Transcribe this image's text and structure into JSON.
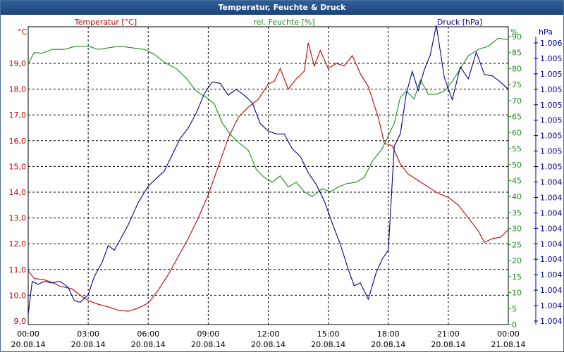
{
  "window": {
    "title": "Temperatur, Feuchte & Druck"
  },
  "colors": {
    "temperature": "#c00000",
    "humidity": "#1a8c1a",
    "pressure": "#00008b",
    "grid": "#000000",
    "text": "#000000",
    "titlebar": "#1c4478"
  },
  "chart_data": {
    "type": "line",
    "title": "Temperatur, Feuchte & Druck",
    "grid": true,
    "x": {
      "ticks": [
        {
          "time": "00:00",
          "date": "20.08.14"
        },
        {
          "time": "03:00",
          "date": "20.08.14"
        },
        {
          "time": "06:00",
          "date": "20.08.14"
        },
        {
          "time": "09:00",
          "date": "20.08.14"
        },
        {
          "time": "12:00",
          "date": "20.08.14"
        },
        {
          "time": "15:00",
          "date": "20.08.14"
        },
        {
          "time": "18:00",
          "date": "20.08.14"
        },
        {
          "time": "21:00",
          "date": "20.08.14"
        },
        {
          "time": "00:00",
          "date": "21.08.14"
        }
      ],
      "range_hours": [
        0,
        24
      ]
    },
    "axes": {
      "temperature": {
        "label": "Temperatur [°C]",
        "unit": "°C",
        "range": [
          9.0,
          19.8
        ],
        "ticks": [
          "19,0",
          "18,0",
          "17,0",
          "16,0",
          "15,0",
          "14,0",
          "13,0",
          "12,0",
          "11,0",
          "10,0",
          "9,0"
        ],
        "tick_values": [
          19,
          18,
          17,
          16,
          15,
          14,
          13,
          12,
          11,
          10,
          9
        ]
      },
      "humidity": {
        "label": "rel. Feuchte [%]",
        "unit": "%",
        "range": [
          0,
          93.3
        ],
        "ticks": [
          "90",
          "85",
          "80",
          "75",
          "70",
          "65",
          "60",
          "55",
          "50",
          "45",
          "40",
          "35",
          "30",
          "25",
          "20",
          "15",
          "10",
          "5",
          "0"
        ],
        "tick_values": [
          90,
          85,
          80,
          75,
          70,
          65,
          60,
          55,
          50,
          45,
          40,
          35,
          30,
          25,
          20,
          15,
          10,
          5,
          0
        ]
      },
      "pressure": {
        "label": "Druck [hPa]",
        "unit": "hPa",
        "range": [
          0,
          20
        ],
        "ticks": [
          "1.006",
          "1.005",
          "1.005",
          "1.005",
          "1.005",
          "1.005",
          "1.005",
          "1.005",
          "1.005",
          "1.004",
          "1.004",
          "1.004",
          "1.004",
          "1.004",
          "1.004",
          "1.004",
          "1.004",
          "1.004",
          "1.004"
        ]
      }
    },
    "series": [
      {
        "name": "Temperatur [°C]",
        "axis": "temperature",
        "points": [
          [
            0,
            10.95
          ],
          [
            0.3,
            10.65
          ],
          [
            0.8,
            10.6
          ],
          [
            1.2,
            10.5
          ],
          [
            1.6,
            10.35
          ],
          [
            2.2,
            10.25
          ],
          [
            2.6,
            10.0
          ],
          [
            3.0,
            9.8
          ],
          [
            3.5,
            9.65
          ],
          [
            4.0,
            9.55
          ],
          [
            4.5,
            9.42
          ],
          [
            5.0,
            9.38
          ],
          [
            5.5,
            9.5
          ],
          [
            6.0,
            9.7
          ],
          [
            6.5,
            10.2
          ],
          [
            7.0,
            10.8
          ],
          [
            7.5,
            11.5
          ],
          [
            8.0,
            12.2
          ],
          [
            8.5,
            13.0
          ],
          [
            9.0,
            13.9
          ],
          [
            9.5,
            15.0
          ],
          [
            10.0,
            16.1
          ],
          [
            10.5,
            16.9
          ],
          [
            11.0,
            17.3
          ],
          [
            11.5,
            17.6
          ],
          [
            12.0,
            18.2
          ],
          [
            12.3,
            18.3
          ],
          [
            12.6,
            18.8
          ],
          [
            13.0,
            18.0
          ],
          [
            13.4,
            18.4
          ],
          [
            13.8,
            18.7
          ],
          [
            14.0,
            19.8
          ],
          [
            14.3,
            18.9
          ],
          [
            14.6,
            19.5
          ],
          [
            15.0,
            18.8
          ],
          [
            15.4,
            19.0
          ],
          [
            15.8,
            18.9
          ],
          [
            16.2,
            19.3
          ],
          [
            16.6,
            18.6
          ],
          [
            17.0,
            18.1
          ],
          [
            17.5,
            16.9
          ],
          [
            17.8,
            15.9
          ],
          [
            18.2,
            15.8
          ],
          [
            18.6,
            15.1
          ],
          [
            19.0,
            14.7
          ],
          [
            19.5,
            14.45
          ],
          [
            20.0,
            14.2
          ],
          [
            20.5,
            13.95
          ],
          [
            21.0,
            13.8
          ],
          [
            21.5,
            13.5
          ],
          [
            22.0,
            13.0
          ],
          [
            22.5,
            12.5
          ],
          [
            22.8,
            12.05
          ],
          [
            23.2,
            12.2
          ],
          [
            23.6,
            12.25
          ],
          [
            24.0,
            12.55
          ]
        ]
      },
      {
        "name": "rel. Feuchte [%]",
        "axis": "humidity",
        "points": [
          [
            0,
            81.5
          ],
          [
            0.3,
            85.0
          ],
          [
            0.7,
            84.8
          ],
          [
            1.2,
            86.0
          ],
          [
            1.8,
            86.0
          ],
          [
            2.4,
            87.0
          ],
          [
            3.0,
            87.0
          ],
          [
            3.5,
            86.0
          ],
          [
            4.0,
            86.5
          ],
          [
            4.6,
            87.0
          ],
          [
            5.2,
            86.5
          ],
          [
            5.8,
            86.0
          ],
          [
            6.3,
            84.5
          ],
          [
            6.8,
            82.0
          ],
          [
            7.4,
            80.0
          ],
          [
            7.9,
            77.0
          ],
          [
            8.4,
            73.0
          ],
          [
            8.9,
            71.0
          ],
          [
            9.3,
            69.0
          ],
          [
            9.7,
            63.0
          ],
          [
            10.1,
            59.5
          ],
          [
            10.5,
            57.0
          ],
          [
            11.0,
            54.5
          ],
          [
            11.4,
            48.5
          ],
          [
            11.8,
            46.0
          ],
          [
            12.2,
            44.5
          ],
          [
            12.6,
            46.5
          ],
          [
            13.0,
            43.0
          ],
          [
            13.4,
            44.5
          ],
          [
            13.8,
            41.5
          ],
          [
            14.2,
            40.0
          ],
          [
            14.7,
            42.5
          ],
          [
            15.1,
            41.5
          ],
          [
            15.5,
            43.0
          ],
          [
            15.9,
            44.0
          ],
          [
            16.4,
            44.5
          ],
          [
            16.8,
            46.0
          ],
          [
            17.2,
            51.0
          ],
          [
            17.7,
            55.0
          ],
          [
            18.0,
            59.0
          ],
          [
            18.3,
            63.0
          ],
          [
            18.6,
            71.0
          ],
          [
            18.9,
            73.0
          ],
          [
            19.3,
            70.5
          ],
          [
            19.6,
            76.5
          ],
          [
            20.0,
            72.0
          ],
          [
            20.4,
            72.0
          ],
          [
            20.8,
            73.0
          ],
          [
            21.2,
            76.0
          ],
          [
            21.6,
            80.0
          ],
          [
            22.0,
            84.0
          ],
          [
            22.5,
            86.0
          ],
          [
            23.0,
            87.0
          ],
          [
            23.5,
            89.5
          ],
          [
            24.0,
            89.0
          ]
        ]
      },
      {
        "name": "Druck [hPa]",
        "axis": "pressure",
        "points": [
          [
            0,
            0.7
          ],
          [
            0.2,
            2.9
          ],
          [
            0.5,
            2.7
          ],
          [
            0.8,
            2.9
          ],
          [
            1.2,
            2.8
          ],
          [
            1.6,
            2.9
          ],
          [
            2.0,
            2.5
          ],
          [
            2.3,
            1.6
          ],
          [
            2.6,
            1.5
          ],
          [
            3.0,
            2.0
          ],
          [
            3.3,
            3.2
          ],
          [
            3.7,
            4.2
          ],
          [
            4.0,
            5.3
          ],
          [
            4.3,
            5.0
          ],
          [
            4.6,
            5.7
          ],
          [
            5.0,
            6.7
          ],
          [
            5.5,
            8.2
          ],
          [
            6.0,
            9.3
          ],
          [
            6.4,
            9.8
          ],
          [
            6.8,
            10.3
          ],
          [
            7.2,
            11.4
          ],
          [
            7.6,
            12.5
          ],
          [
            8.0,
            13.2
          ],
          [
            8.4,
            14.2
          ],
          [
            8.8,
            15.5
          ],
          [
            9.2,
            16.3
          ],
          [
            9.6,
            16.2
          ],
          [
            10.0,
            15.4
          ],
          [
            10.4,
            15.8
          ],
          [
            10.8,
            15.4
          ],
          [
            11.2,
            14.9
          ],
          [
            11.6,
            13.5
          ],
          [
            12.0,
            13.0
          ],
          [
            12.4,
            12.8
          ],
          [
            12.8,
            12.8
          ],
          [
            13.2,
            11.8
          ],
          [
            13.6,
            11.3
          ],
          [
            14.0,
            10.2
          ],
          [
            14.4,
            9.4
          ],
          [
            14.8,
            8.3
          ],
          [
            15.2,
            6.8
          ],
          [
            15.6,
            5.4
          ],
          [
            16.0,
            3.7
          ],
          [
            16.3,
            2.6
          ],
          [
            16.6,
            2.8
          ],
          [
            17.0,
            1.7
          ],
          [
            17.4,
            3.5
          ],
          [
            17.7,
            4.4
          ],
          [
            18.0,
            5.0
          ],
          [
            18.3,
            12.0
          ],
          [
            18.6,
            12.8
          ],
          [
            18.9,
            15.5
          ],
          [
            19.2,
            17.0
          ],
          [
            19.5,
            15.7
          ],
          [
            19.8,
            17.1
          ],
          [
            20.1,
            18.1
          ],
          [
            20.4,
            20.1
          ],
          [
            20.8,
            16.6
          ],
          [
            21.2,
            15.1
          ],
          [
            21.6,
            17.3
          ],
          [
            22.0,
            16.5
          ],
          [
            22.4,
            18.3
          ],
          [
            22.8,
            16.8
          ],
          [
            23.2,
            16.7
          ],
          [
            23.6,
            16.3
          ],
          [
            24.0,
            15.8
          ]
        ]
      }
    ]
  }
}
